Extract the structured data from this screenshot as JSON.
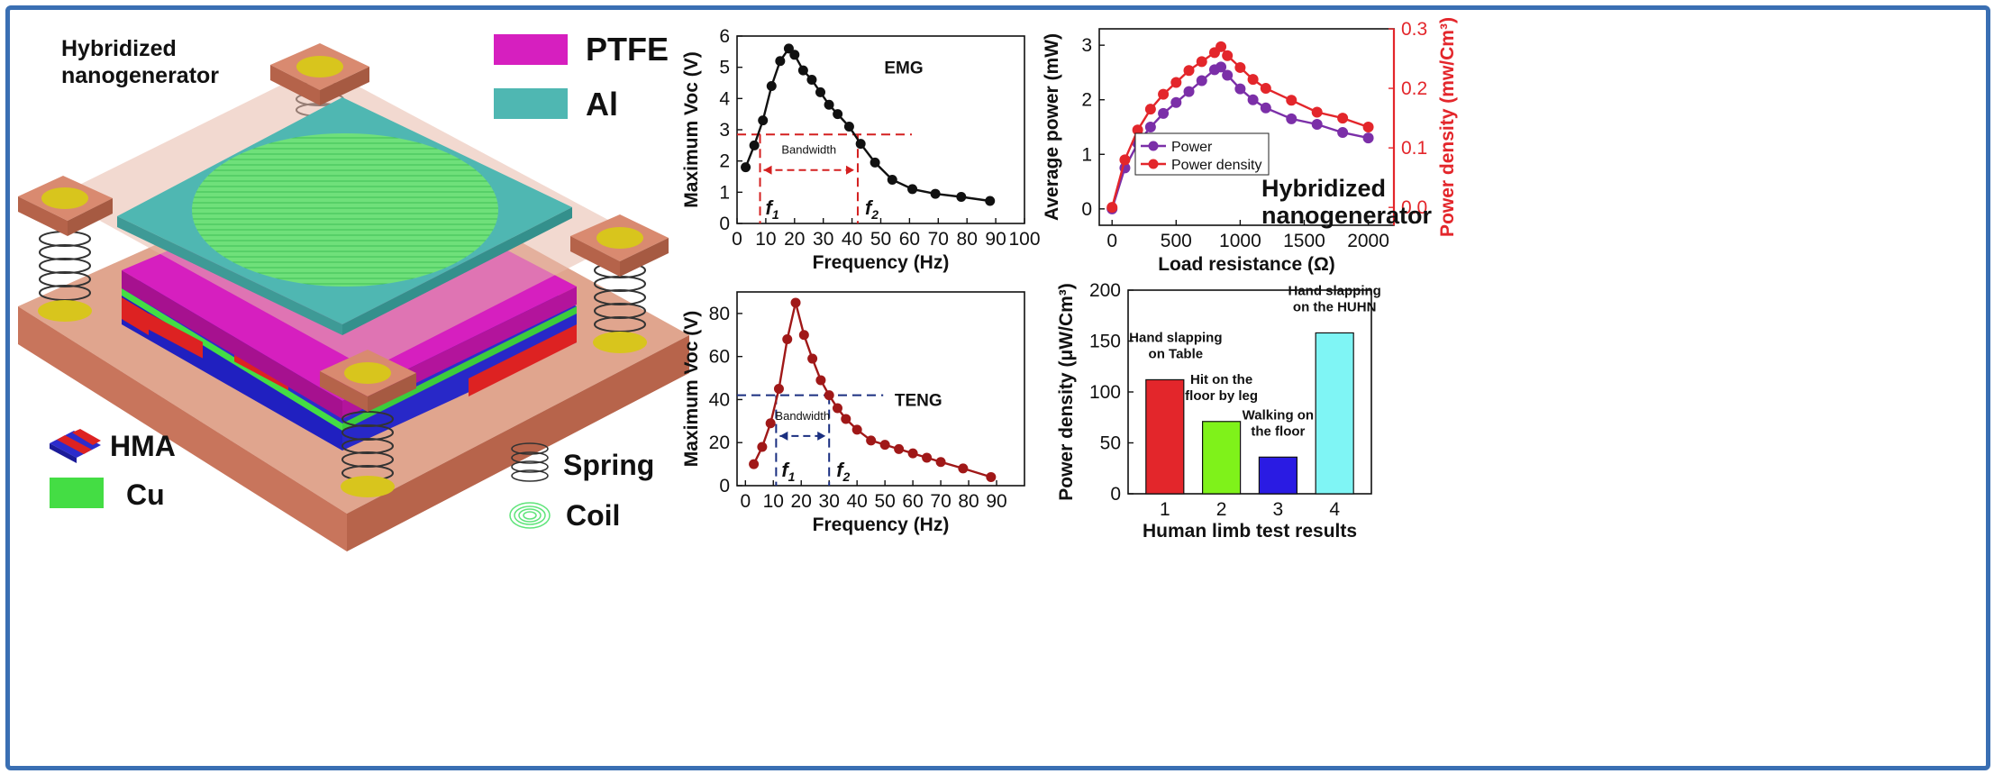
{
  "illustration": {
    "title_line1": "Hybridized",
    "title_line2": "nanogenerator",
    "legend": [
      {
        "label": "PTFE",
        "color": "#d61fbf"
      },
      {
        "label": "Al",
        "color": "#4fb7b2"
      },
      {
        "label": "HMA",
        "color": "#2c2ccc"
      },
      {
        "label": "Cu",
        "color": "#44dd44"
      },
      {
        "label": "Spring",
        "color": "#333333"
      },
      {
        "label": "Coil",
        "color": "#66ee88"
      }
    ]
  },
  "chart_data": [
    {
      "id": "emg",
      "type": "line",
      "annotation": "EMG",
      "xlabel": "Frequency (Hz)",
      "ylabel": "Maximum Voc (V)",
      "xlim": [
        0,
        100
      ],
      "ylim": [
        0,
        6
      ],
      "xticks": [
        0,
        10,
        20,
        30,
        40,
        50,
        60,
        70,
        80,
        90,
        100
      ],
      "yticks": [
        0,
        1,
        2,
        3,
        4,
        5,
        6
      ],
      "x": [
        3,
        6,
        9,
        12,
        15,
        18,
        20,
        23,
        26,
        29,
        32,
        35,
        39,
        43,
        48,
        54,
        61,
        69,
        78,
        88
      ],
      "y": [
        1.8,
        2.5,
        3.3,
        4.4,
        5.2,
        5.6,
        5.4,
        4.9,
        4.6,
        4.2,
        3.8,
        3.5,
        3.1,
        2.55,
        1.95,
        1.4,
        1.1,
        0.95,
        0.85,
        0.72
      ],
      "color": "#111111",
      "reference_y": 2.85,
      "f1": 8,
      "f2": 42,
      "f1_label": "f",
      "f1_sub": "1",
      "f2_label": "f",
      "f2_sub": "2",
      "band_label": "Bandwidth",
      "band_color": "#d42020"
    },
    {
      "id": "power",
      "type": "line",
      "xlabel": "Load resistance (Ω)",
      "ylabel": "Average power (mW)",
      "y2label": "Power density (mw/Cm³)",
      "annotation_line1": "Hybridized",
      "annotation_line2": "nanogenerator",
      "xlim": [
        -100,
        2200
      ],
      "ylim": [
        -0.3,
        3.3
      ],
      "y2lim": [
        -0.03,
        0.3
      ],
      "xticks": [
        0,
        500,
        1000,
        1500,
        2000
      ],
      "yticks": [
        0,
        1,
        2,
        3
      ],
      "y2ticks": [
        0.0,
        0.1,
        0.2,
        0.3
      ],
      "y2tick_labels": [
        "0.0",
        "0.1",
        "0.2",
        "0.3"
      ],
      "x": [
        0,
        100,
        200,
        300,
        400,
        500,
        600,
        700,
        800,
        850,
        900,
        1000,
        1100,
        1200,
        1400,
        1600,
        1800,
        2000
      ],
      "legend_position": "center-left",
      "series": [
        {
          "name": "Power",
          "color": "#7b2fa8",
          "axis": "left",
          "values": [
            0,
            0.75,
            1.2,
            1.5,
            1.75,
            1.95,
            2.15,
            2.35,
            2.55,
            2.6,
            2.45,
            2.2,
            2.0,
            1.85,
            1.65,
            1.55,
            1.4,
            1.3
          ]
        },
        {
          "name": "Power density",
          "color": "#e3262b",
          "axis": "right",
          "values": [
            0,
            0.08,
            0.13,
            0.165,
            0.19,
            0.21,
            0.23,
            0.245,
            0.26,
            0.27,
            0.255,
            0.235,
            0.215,
            0.2,
            0.18,
            0.16,
            0.15,
            0.135
          ]
        }
      ]
    },
    {
      "id": "teng",
      "type": "line",
      "annotation": "TENG",
      "xlabel": "Frequency (Hz)",
      "ylabel": "Maximum Voc (V)",
      "xlim": [
        -3,
        100
      ],
      "ylim": [
        0,
        90
      ],
      "xticks": [
        0,
        10,
        20,
        30,
        40,
        50,
        60,
        70,
        80,
        90
      ],
      "yticks": [
        0,
        20,
        40,
        60,
        80
      ],
      "x": [
        3,
        6,
        9,
        12,
        15,
        18,
        21,
        24,
        27,
        30,
        33,
        36,
        40,
        45,
        50,
        55,
        60,
        65,
        70,
        78,
        88
      ],
      "y": [
        10,
        18,
        29,
        45,
        68,
        85,
        70,
        59,
        49,
        42,
        36,
        31,
        26,
        21,
        19,
        17,
        15,
        13,
        11,
        8,
        4
      ],
      "color": "#a01818",
      "reference_y": 42,
      "f1": 11,
      "f2": 30,
      "f1_label": "f",
      "f1_sub": "1",
      "f2_label": "f",
      "f2_sub": "2",
      "band_label": "Bandwidth",
      "band_color": "#1a2f80"
    },
    {
      "id": "limb",
      "type": "bar",
      "xlabel": "Human limb test results",
      "ylabel": "Power density (μW/Cm³)",
      "ylim": [
        0,
        200
      ],
      "yticks": [
        0,
        50,
        100,
        150,
        200
      ],
      "categories": [
        "1",
        "2",
        "3",
        "4"
      ],
      "values": [
        112,
        71,
        36,
        158
      ],
      "colors": [
        "#e3262b",
        "#7ff21a",
        "#2a1be3",
        "#7ff5f5"
      ],
      "bar_labels": [
        [
          "Hand slapping",
          "on Table"
        ],
        [
          "Hit on the",
          "floor by leg"
        ],
        [
          "Walking on",
          "the floor"
        ],
        [
          "Hand slapping",
          "on the HUHN"
        ]
      ]
    }
  ]
}
